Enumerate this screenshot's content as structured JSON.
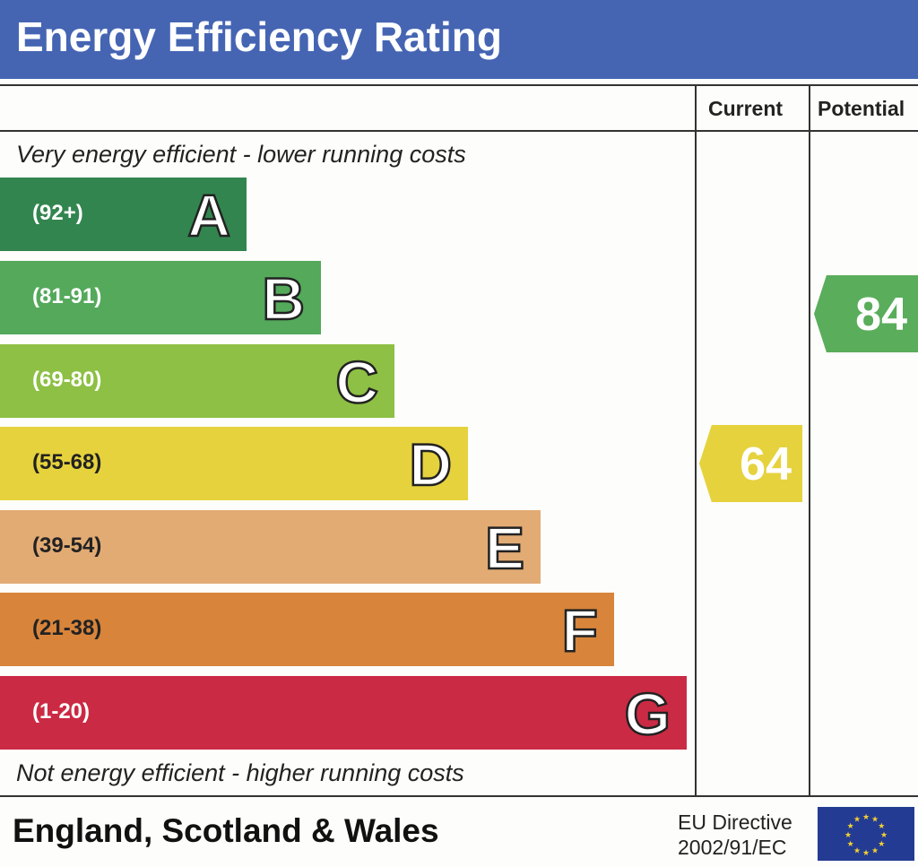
{
  "title": "Energy Efficiency Rating",
  "columns": {
    "current": "Current",
    "potential": "Potential"
  },
  "top_note": "Very energy efficient - lower running costs",
  "bottom_note": "Not energy efficient - higher running costs",
  "footer": {
    "country": "England, Scotland & Wales",
    "directive_line1": "EU Directive",
    "directive_line2": "2002/91/EC",
    "flag_icon": "eu-flag-icon"
  },
  "chart_data": {
    "type": "bar",
    "bands": [
      {
        "letter": "A",
        "range": "(92+)",
        "color": "#33854f"
      },
      {
        "letter": "B",
        "range": "(81-91)",
        "color": "#54a95b"
      },
      {
        "letter": "C",
        "range": "(69-80)",
        "color": "#8dc044"
      },
      {
        "letter": "D",
        "range": "(55-68)",
        "color": "#e6d23d"
      },
      {
        "letter": "E",
        "range": "(39-54)",
        "color": "#e2ab74"
      },
      {
        "letter": "F",
        "range": "(21-38)",
        "color": "#d8843b"
      },
      {
        "letter": "G",
        "range": "(1-20)",
        "color": "#cb2a44"
      }
    ],
    "current": {
      "value": "64",
      "band": "D",
      "color": "#e6d23d"
    },
    "potential": {
      "value": "84",
      "band": "B",
      "color": "#5aad5b"
    }
  }
}
